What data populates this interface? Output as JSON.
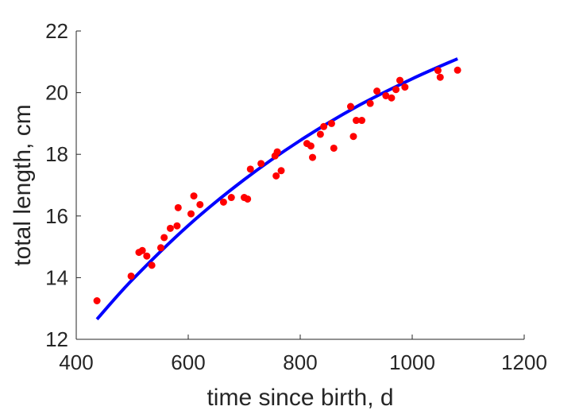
{
  "chart_data": {
    "type": "scatter",
    "title": "",
    "xlabel": "time since birth, d",
    "ylabel": "total length, cm",
    "xlim": [
      400,
      1200
    ],
    "ylim": [
      12,
      22
    ],
    "x_ticks": [
      "400",
      "600",
      "800",
      "1000",
      "1200"
    ],
    "y_ticks": [
      "12",
      "14",
      "16",
      "18",
      "20",
      "22"
    ],
    "grid": false,
    "legend": "none",
    "colors": {
      "points": "#ff0000",
      "fit": "#0000ff",
      "axis": "#262626"
    },
    "series": [
      {
        "kind": "points",
        "x": [
          437,
          498,
          512,
          518,
          526,
          535,
          551,
          557,
          568,
          580,
          582,
          605,
          610,
          621,
          663,
          677,
          700,
          706,
          711,
          730,
          755,
          757,
          759,
          766,
          812,
          819,
          822,
          836,
          842,
          856,
          860,
          890,
          895,
          900,
          910,
          925,
          937,
          953,
          963,
          971,
          978,
          987,
          1046,
          1050,
          1081
        ],
        "y": [
          13.25,
          14.05,
          14.82,
          14.88,
          14.7,
          14.4,
          14.97,
          15.3,
          15.6,
          15.68,
          16.27,
          16.07,
          16.65,
          16.37,
          16.45,
          16.6,
          16.6,
          16.55,
          17.52,
          17.7,
          17.95,
          17.3,
          18.08,
          17.47,
          18.35,
          18.27,
          17.9,
          18.65,
          18.9,
          19.0,
          18.2,
          19.55,
          18.58,
          19.1,
          19.1,
          19.65,
          20.05,
          19.9,
          19.83,
          20.1,
          20.4,
          20.18,
          20.72,
          20.5,
          20.73
        ]
      },
      {
        "kind": "fit",
        "x": [
          437,
          500,
          600,
          700,
          800,
          900,
          1000,
          1081
        ],
        "y": [
          12.65,
          13.93,
          15.69,
          17.18,
          18.45,
          19.54,
          20.45,
          21.1
        ]
      }
    ]
  }
}
